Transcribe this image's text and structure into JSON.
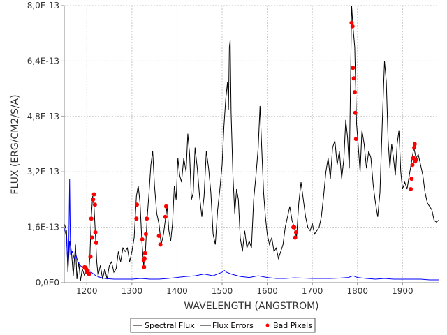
{
  "chart_data": {
    "type": "line",
    "title": "",
    "xlabel": "WAVELENGTH (ANGSTROM)",
    "ylabel": "FLUX (ERG/CM2/S/A)",
    "xlim": [
      1150,
      1980
    ],
    "ylim": [
      0,
      8e-13
    ],
    "x_ticks": [
      1200,
      1300,
      1400,
      1500,
      1600,
      1700,
      1800,
      1900
    ],
    "x_tick_labels": [
      "1200",
      "1300",
      "1400",
      "1500",
      "1600",
      "1700",
      "1800",
      "1900"
    ],
    "y_ticks": [
      0,
      1.6e-13,
      3.2e-13,
      4.8e-13,
      6.4e-13,
      8e-13
    ],
    "y_tick_labels": [
      "0,0E0",
      "1,6E-13",
      "3,2E-13",
      "4,8E-13",
      "6,4E-13",
      "8,0E-13"
    ],
    "grid": true,
    "legend_position": "bottom-center",
    "series": [
      {
        "name": "Spectral Flux",
        "color": "#000000",
        "mark": "line",
        "points": [
          [
            1150,
            1.7e-13
          ],
          [
            1155,
            1.5e-13
          ],
          [
            1158,
            3e-14
          ],
          [
            1162,
            1.2e-13
          ],
          [
            1166,
            9e-14
          ],
          [
            1170,
            2e-14
          ],
          [
            1175,
            1.1e-13
          ],
          [
            1178,
            1e-14
          ],
          [
            1182,
            6e-14
          ],
          [
            1186,
            5e-15
          ],
          [
            1190,
            4e-14
          ],
          [
            1195,
            2e-14
          ],
          [
            1200,
            5e-14
          ],
          [
            1204,
            2e-14
          ],
          [
            1207,
            8e-14
          ],
          [
            1210,
            1.9e-13
          ],
          [
            1213,
            2.5e-13
          ],
          [
            1216,
            2.2e-13
          ],
          [
            1219,
            1.4e-13
          ],
          [
            1222,
            6e-14
          ],
          [
            1225,
            2e-14
          ],
          [
            1230,
            5e-14
          ],
          [
            1235,
            1e-14
          ],
          [
            1240,
            4e-14
          ],
          [
            1245,
            1e-14
          ],
          [
            1250,
            5e-14
          ],
          [
            1255,
            6e-14
          ],
          [
            1260,
            3e-14
          ],
          [
            1265,
            4e-14
          ],
          [
            1270,
            9e-14
          ],
          [
            1275,
            6e-14
          ],
          [
            1280,
            1e-13
          ],
          [
            1285,
            9e-14
          ],
          [
            1290,
            1e-13
          ],
          [
            1295,
            6e-14
          ],
          [
            1300,
            9e-14
          ],
          [
            1305,
            1.3e-13
          ],
          [
            1310,
            2.5e-13
          ],
          [
            1314,
            2.8e-13
          ],
          [
            1318,
            2.3e-13
          ],
          [
            1322,
            1.2e-13
          ],
          [
            1326,
            5e-14
          ],
          [
            1330,
            9e-14
          ],
          [
            1334,
            1.9e-13
          ],
          [
            1338,
            2.6e-13
          ],
          [
            1342,
            3.4e-13
          ],
          [
            1346,
            3.8e-13
          ],
          [
            1350,
            2.8e-13
          ],
          [
            1355,
            2e-13
          ],
          [
            1360,
            1.7e-13
          ],
          [
            1365,
            1.1e-13
          ],
          [
            1370,
            1.4e-13
          ],
          [
            1375,
            1.9e-13
          ],
          [
            1378,
            2.2e-13
          ],
          [
            1382,
            1.5e-13
          ],
          [
            1386,
            1.2e-13
          ],
          [
            1390,
            1.7e-13
          ],
          [
            1394,
            2.8e-13
          ],
          [
            1398,
            2.4e-13
          ],
          [
            1402,
            3.6e-13
          ],
          [
            1406,
            3.1e-13
          ],
          [
            1410,
            2.9e-13
          ],
          [
            1415,
            3.6e-13
          ],
          [
            1420,
            3.2e-13
          ],
          [
            1424,
            4.3e-13
          ],
          [
            1428,
            3.7e-13
          ],
          [
            1432,
            2.4e-13
          ],
          [
            1436,
            2.6e-13
          ],
          [
            1440,
            3.9e-13
          ],
          [
            1445,
            3.3e-13
          ],
          [
            1450,
            2.5e-13
          ],
          [
            1455,
            1.9e-13
          ],
          [
            1460,
            2.5e-13
          ],
          [
            1465,
            3.8e-13
          ],
          [
            1470,
            3.3e-13
          ],
          [
            1475,
            2.6e-13
          ],
          [
            1480,
            1.4e-13
          ],
          [
            1485,
            1.1e-13
          ],
          [
            1490,
            2.1e-13
          ],
          [
            1495,
            2.7e-13
          ],
          [
            1500,
            3.4e-13
          ],
          [
            1504,
            4.5e-13
          ],
          [
            1508,
            5.3e-13
          ],
          [
            1512,
            5.8e-13
          ],
          [
            1514,
            5e-13
          ],
          [
            1516,
            6.8e-13
          ],
          [
            1518,
            7e-13
          ],
          [
            1520,
            4.9e-13
          ],
          [
            1524,
            3.1e-13
          ],
          [
            1528,
            2e-13
          ],
          [
            1532,
            2.7e-13
          ],
          [
            1536,
            2.4e-13
          ],
          [
            1540,
            1.3e-13
          ],
          [
            1545,
            9e-14
          ],
          [
            1550,
            1.5e-13
          ],
          [
            1555,
            1e-13
          ],
          [
            1560,
            1.2e-13
          ],
          [
            1565,
            1e-13
          ],
          [
            1570,
            2.4e-13
          ],
          [
            1575,
            3.1e-13
          ],
          [
            1580,
            3.9e-13
          ],
          [
            1584,
            5.1e-13
          ],
          [
            1588,
            3.8e-13
          ],
          [
            1592,
            2.6e-13
          ],
          [
            1596,
            1.9e-13
          ],
          [
            1600,
            1.4e-13
          ],
          [
            1605,
            1.1e-13
          ],
          [
            1610,
            1.3e-13
          ],
          [
            1615,
            9e-14
          ],
          [
            1620,
            1e-13
          ],
          [
            1625,
            7e-14
          ],
          [
            1630,
            9e-14
          ],
          [
            1635,
            1.1e-13
          ],
          [
            1640,
            1.6e-13
          ],
          [
            1645,
            1.9e-13
          ],
          [
            1650,
            2.2e-13
          ],
          [
            1655,
            1.8e-13
          ],
          [
            1660,
            1.6e-13
          ],
          [
            1665,
            1.3e-13
          ],
          [
            1670,
            2.3e-13
          ],
          [
            1675,
            2.9e-13
          ],
          [
            1680,
            2.4e-13
          ],
          [
            1685,
            1.9e-13
          ],
          [
            1690,
            1.6e-13
          ],
          [
            1695,
            1.5e-13
          ],
          [
            1700,
            1.7e-13
          ],
          [
            1705,
            1.4e-13
          ],
          [
            1710,
            1.5e-13
          ],
          [
            1715,
            1.6e-13
          ],
          [
            1720,
            1.9e-13
          ],
          [
            1725,
            2.5e-13
          ],
          [
            1730,
            3.2e-13
          ],
          [
            1735,
            3.6e-13
          ],
          [
            1740,
            3e-13
          ],
          [
            1745,
            3.9e-13
          ],
          [
            1750,
            4.1e-13
          ],
          [
            1755,
            3.4e-13
          ],
          [
            1760,
            3.8e-13
          ],
          [
            1765,
            3e-13
          ],
          [
            1770,
            3.6e-13
          ],
          [
            1774,
            4.7e-13
          ],
          [
            1778,
            4.2e-13
          ],
          [
            1782,
            3.3e-13
          ],
          [
            1785,
            6.1e-13
          ],
          [
            1787,
            8e-13
          ],
          [
            1790,
            7.4e-13
          ],
          [
            1794,
            6.8e-13
          ],
          [
            1798,
            4.6e-13
          ],
          [
            1802,
            3.9e-13
          ],
          [
            1806,
            3.2e-13
          ],
          [
            1810,
            4.4e-13
          ],
          [
            1815,
            4e-13
          ],
          [
            1820,
            3.3e-13
          ],
          [
            1825,
            3.8e-13
          ],
          [
            1830,
            3.6e-13
          ],
          [
            1835,
            2.8e-13
          ],
          [
            1840,
            2.3e-13
          ],
          [
            1845,
            1.9e-13
          ],
          [
            1850,
            2.6e-13
          ],
          [
            1855,
            4.6e-13
          ],
          [
            1860,
            6.4e-13
          ],
          [
            1864,
            5.8e-13
          ],
          [
            1868,
            4.1e-13
          ],
          [
            1872,
            3.3e-13
          ],
          [
            1876,
            4e-13
          ],
          [
            1880,
            3.6e-13
          ],
          [
            1884,
            3.1e-13
          ],
          [
            1888,
            4e-13
          ],
          [
            1892,
            4.4e-13
          ],
          [
            1896,
            3.2e-13
          ],
          [
            1900,
            2.7e-13
          ],
          [
            1905,
            2.9e-13
          ],
          [
            1910,
            2.7e-13
          ],
          [
            1915,
            3.1e-13
          ],
          [
            1920,
            3.5e-13
          ],
          [
            1925,
            3.9e-13
          ],
          [
            1930,
            3.6e-13
          ],
          [
            1935,
            3.7e-13
          ],
          [
            1940,
            3.4e-13
          ],
          [
            1945,
            3.1e-13
          ],
          [
            1950,
            2.6e-13
          ],
          [
            1955,
            2.3e-13
          ],
          [
            1960,
            2.2e-13
          ],
          [
            1965,
            2.1e-13
          ],
          [
            1970,
            1.8e-13
          ],
          [
            1975,
            1.75e-13
          ],
          [
            1980,
            1.8e-13
          ]
        ]
      },
      {
        "name": "Flux Errors",
        "color": "#0000ff",
        "mark": "line",
        "points": [
          [
            1150,
            1.6e-13
          ],
          [
            1155,
            1.3e-13
          ],
          [
            1158,
            4e-14
          ],
          [
            1160,
            1e-13
          ],
          [
            1162,
            3e-13
          ],
          [
            1164,
            8e-14
          ],
          [
            1168,
            9e-14
          ],
          [
            1172,
            7e-14
          ],
          [
            1176,
            8e-14
          ],
          [
            1180,
            6e-14
          ],
          [
            1185,
            5e-14
          ],
          [
            1190,
            4.5e-14
          ],
          [
            1195,
            4e-14
          ],
          [
            1200,
            3.5e-14
          ],
          [
            1205,
            3e-14
          ],
          [
            1210,
            3e-14
          ],
          [
            1215,
            2.5e-14
          ],
          [
            1220,
            2e-14
          ],
          [
            1230,
            1.5e-14
          ],
          [
            1240,
            1.2e-14
          ],
          [
            1260,
            1e-14
          ],
          [
            1280,
            1e-14
          ],
          [
            1300,
            1e-14
          ],
          [
            1320,
            1.2e-14
          ],
          [
            1340,
            1e-14
          ],
          [
            1360,
            1e-14
          ],
          [
            1380,
            1.2e-14
          ],
          [
            1400,
            1.5e-14
          ],
          [
            1420,
            1.8e-14
          ],
          [
            1440,
            2e-14
          ],
          [
            1460,
            2.5e-14
          ],
          [
            1480,
            2e-14
          ],
          [
            1500,
            3e-14
          ],
          [
            1505,
            3.5e-14
          ],
          [
            1510,
            3e-14
          ],
          [
            1520,
            2.5e-14
          ],
          [
            1540,
            1.8e-14
          ],
          [
            1560,
            1.5e-14
          ],
          [
            1580,
            2e-14
          ],
          [
            1600,
            1.5e-14
          ],
          [
            1620,
            1.2e-14
          ],
          [
            1640,
            1.2e-14
          ],
          [
            1660,
            1.4e-14
          ],
          [
            1680,
            1.3e-14
          ],
          [
            1700,
            1.2e-14
          ],
          [
            1720,
            1.2e-14
          ],
          [
            1740,
            1.2e-14
          ],
          [
            1760,
            1.3e-14
          ],
          [
            1780,
            1.5e-14
          ],
          [
            1790,
            2e-14
          ],
          [
            1800,
            1.5e-14
          ],
          [
            1820,
            1.2e-14
          ],
          [
            1840,
            1e-14
          ],
          [
            1860,
            1.2e-14
          ],
          [
            1880,
            1e-14
          ],
          [
            1900,
            1e-14
          ],
          [
            1920,
            1e-14
          ],
          [
            1940,
            1e-14
          ],
          [
            1960,
            8e-15
          ],
          [
            1980,
            8e-15
          ]
        ]
      },
      {
        "name": "Bad Pixels",
        "color": "#ff0000",
        "mark": "point",
        "points": [
          [
            1195,
            4.5e-14
          ],
          [
            1198,
            4e-14
          ],
          [
            1200,
            3e-14
          ],
          [
            1202,
            3.5e-14
          ],
          [
            1205,
            2.5e-14
          ],
          [
            1208,
            7.5e-14
          ],
          [
            1210,
            1.85e-13
          ],
          [
            1212,
            1.3e-13
          ],
          [
            1214,
            2.4e-13
          ],
          [
            1216,
            2.55e-13
          ],
          [
            1218,
            2.25e-13
          ],
          [
            1219,
            1.45e-13
          ],
          [
            1221,
            1.15e-13
          ],
          [
            1310,
            1.85e-13
          ],
          [
            1311,
            2.25e-13
          ],
          [
            1323,
            1.25e-13
          ],
          [
            1326,
            6.5e-14
          ],
          [
            1327,
            4.5e-14
          ],
          [
            1328,
            7e-14
          ],
          [
            1329,
            8.5e-14
          ],
          [
            1331,
            1.4e-13
          ],
          [
            1333,
            1.85e-13
          ],
          [
            1360,
            1.35e-13
          ],
          [
            1363,
            1.1e-13
          ],
          [
            1374,
            1.9e-13
          ],
          [
            1376,
            2.2e-13
          ],
          [
            1658,
            1.6e-13
          ],
          [
            1660,
            1.6e-13
          ],
          [
            1662,
            1.3e-13
          ],
          [
            1664,
            1.45e-13
          ],
          [
            1787,
            7.5e-13
          ],
          [
            1789,
            7.4e-13
          ],
          [
            1790,
            6.2e-13
          ],
          [
            1792,
            5.9e-13
          ],
          [
            1794,
            5.5e-13
          ],
          [
            1795,
            4.9e-13
          ],
          [
            1797,
            4.15e-13
          ],
          [
            1918,
            2.7e-13
          ],
          [
            1920,
            3e-13
          ],
          [
            1922,
            3.4e-13
          ],
          [
            1924,
            3.6e-13
          ],
          [
            1926,
            3.9e-13
          ],
          [
            1927,
            4e-13
          ],
          [
            1928,
            3.5e-13
          ],
          [
            1930,
            3.55e-13
          ]
        ]
      }
    ]
  }
}
